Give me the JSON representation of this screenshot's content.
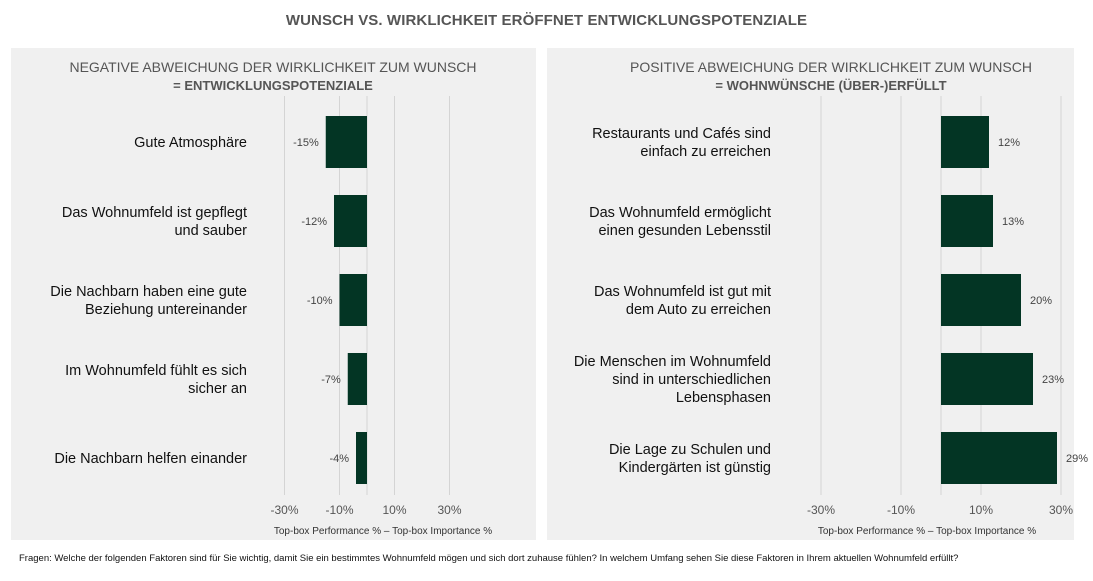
{
  "title": "WUNSCH VS. WIRKLICHKEIT ERÖFFNET ENTWICKLUNGSPOTENZIALE",
  "footnote": "Fragen: Welche der folgenden Faktoren sind für Sie wichtig, damit Sie ein bestimmtes Wohnumfeld mögen und sich dort zuhause fühlen? In welchem Umfang sehen Sie diese Faktoren in Ihrem aktuellen Wohnumfeld erfüllt?",
  "colors": {
    "bar": "#033524",
    "panel": "#f0f0f0",
    "grid": "#d4d4d4"
  },
  "chart_data": [
    {
      "type": "bar",
      "orientation": "horizontal",
      "title_line1": "NEGATIVE ABWEICHUNG DER WIRKLICHKEIT ZUM WUNSCH",
      "title_line2": "= ENTWICKLUNGSPOTENZIALE",
      "xlabel": "Top-box Performance % – Top-box Importance %",
      "xlim": [
        -40,
        40
      ],
      "xticks": [
        -30,
        -10,
        10,
        30
      ],
      "xtick_labels": [
        "-30%",
        "-10%",
        "10%",
        "30%"
      ],
      "grid": true,
      "categories": [
        [
          "Gute Atmosphäre"
        ],
        [
          "Das Wohnumfeld ist gepflegt",
          "und sauber"
        ],
        [
          "Die Nachbarn haben eine gute",
          "Beziehung untereinander"
        ],
        [
          "Im Wohnumfeld fühlt es sich",
          "sicher an"
        ],
        [
          "Die Nachbarn helfen einander"
        ]
      ],
      "values": [
        -15,
        -12,
        -10,
        -7,
        -4
      ],
      "value_labels": [
        "-15%",
        "-12%",
        "-10%",
        "-7%",
        "-4%"
      ]
    },
    {
      "type": "bar",
      "orientation": "horizontal",
      "title_line1": "POSITIVE ABWEICHUNG DER WIRKLICHKEIT ZUM WUNSCH",
      "title_line2": "= WOHNWÜNSCHE (ÜBER-)ERFÜLLT",
      "xlabel": "Top-box Performance % – Top-box Importance %",
      "xlim": [
        -40,
        30
      ],
      "xticks": [
        -30,
        -10,
        10,
        30
      ],
      "xtick_labels": [
        "-30%",
        "-10%",
        "10%",
        "30%"
      ],
      "grid": true,
      "categories": [
        [
          "Restaurants und Cafés sind",
          "einfach zu erreichen"
        ],
        [
          "Das Wohnumfeld ermöglicht",
          "einen gesunden Lebensstil"
        ],
        [
          "Das Wohnumfeld ist gut mit",
          "dem Auto zu erreichen"
        ],
        [
          "Die Menschen im Wohnumfeld",
          "sind in unterschiedlichen",
          "Lebensphasen"
        ],
        [
          "Die Lage zu Schulen und",
          "Kindergärten ist günstig"
        ]
      ],
      "values": [
        12,
        13,
        20,
        23,
        29
      ],
      "value_labels": [
        "12%",
        "13%",
        "20%",
        "23%",
        "29%"
      ]
    }
  ]
}
